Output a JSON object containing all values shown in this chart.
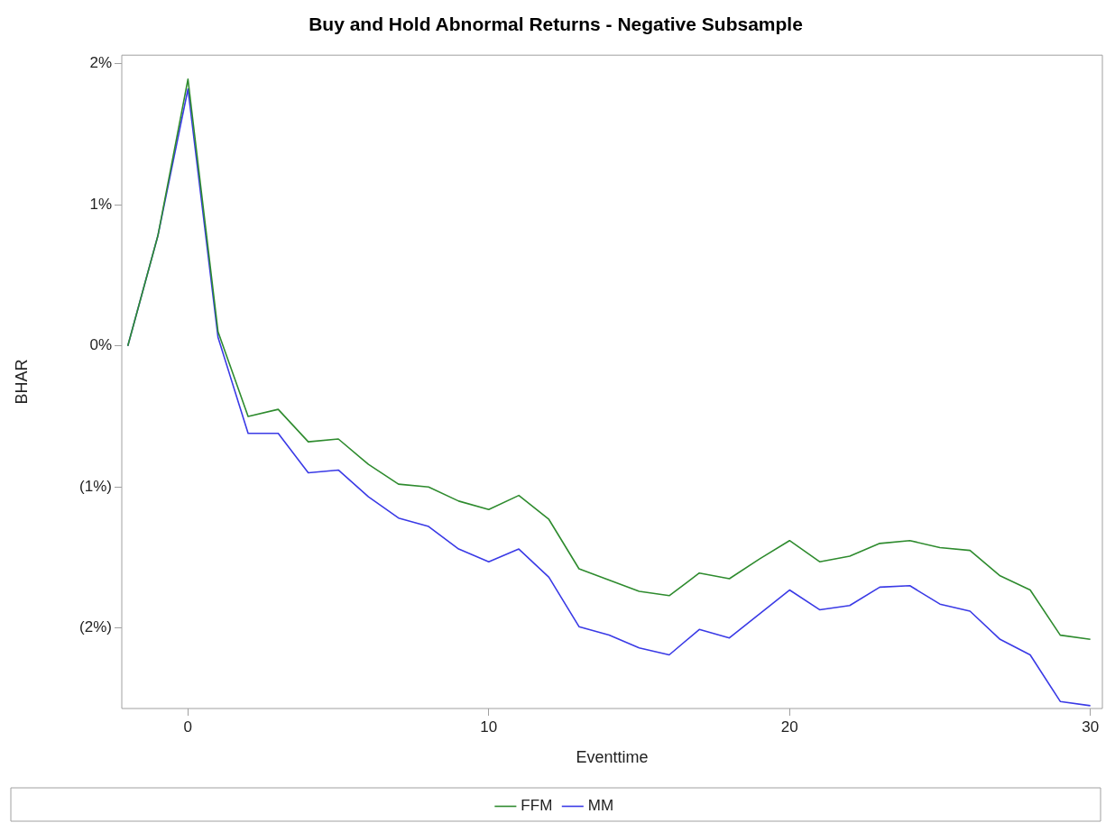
{
  "chart_data": {
    "type": "line",
    "title": "Buy and Hold Abnormal Returns - Negative Subsample",
    "xlabel": "Eventtime",
    "ylabel": "BHAR",
    "x": [
      -2,
      -1,
      0,
      1,
      2,
      3,
      4,
      5,
      6,
      7,
      8,
      9,
      10,
      11,
      12,
      13,
      14,
      15,
      16,
      17,
      18,
      19,
      20,
      21,
      22,
      23,
      24,
      25,
      26,
      27,
      28,
      29,
      30
    ],
    "series": [
      {
        "name": "FFM",
        "color": "#2e8b2e",
        "values": [
          0,
          0.78,
          1.89,
          0.1,
          -0.5,
          -0.45,
          -0.68,
          -0.66,
          -0.84,
          -0.98,
          -1.0,
          -1.1,
          -1.16,
          -1.06,
          -1.23,
          -1.58,
          -1.66,
          -1.74,
          -1.77,
          -1.61,
          -1.65,
          -1.51,
          -1.38,
          -1.53,
          -1.49,
          -1.4,
          -1.38,
          -1.43,
          -1.45,
          -1.63,
          -1.73,
          -2.05,
          -2.08
        ]
      },
      {
        "name": "MM",
        "color": "#3a3ae6",
        "values": [
          0,
          0.78,
          1.82,
          0.06,
          -0.62,
          -0.62,
          -0.9,
          -0.88,
          -1.07,
          -1.22,
          -1.28,
          -1.44,
          -1.53,
          -1.44,
          -1.64,
          -1.99,
          -2.05,
          -2.14,
          -2.19,
          -2.01,
          -2.07,
          -1.9,
          -1.73,
          -1.87,
          -1.84,
          -1.71,
          -1.7,
          -1.83,
          -1.88,
          -2.08,
          -2.19,
          -2.52,
          -2.55
        ]
      }
    ],
    "xlim": [
      -2.2,
      30.4
    ],
    "xticks": [
      0,
      10,
      20,
      30
    ],
    "ylim": [
      -2.57,
      2.06
    ],
    "yticks": [
      {
        "value": -2,
        "label": "(2%)"
      },
      {
        "value": -1,
        "label": "(1%)"
      },
      {
        "value": 0,
        "label": "0%"
      },
      {
        "value": 1,
        "label": "1%"
      },
      {
        "value": 2,
        "label": "2%"
      }
    ],
    "grid": false,
    "legend": "bottom",
    "marker": "none",
    "line_style": "solid"
  }
}
